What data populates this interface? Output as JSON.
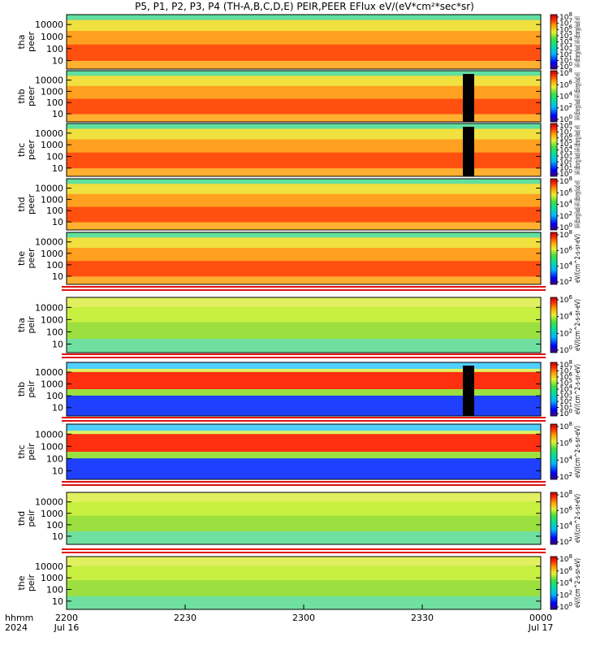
{
  "title": "P5, P1, P2, P3, P4 (TH-A,B,C,D,E) PEIR,PEER EFlux eV/(eV*cm²*sec*sr)",
  "chart_data": {
    "type": "heatmap",
    "x_axis": {
      "time_labels": [
        "2200",
        "2230",
        "2300",
        "2330",
        "0000"
      ],
      "date_labels": [
        "Jul 16",
        "",
        "",
        "",
        "Jul 17"
      ],
      "row_label_time": "hhmm",
      "row_label_year": "2024"
    },
    "y_ticks": [
      "10",
      "100",
      "1000",
      "10000"
    ],
    "y_scale": "log",
    "colorbar_label": "eV/(cm^2-s-sr-eV)",
    "panels": [
      {
        "name": "tha peer",
        "probe": "tha",
        "species": "peer",
        "colorbar_ticks": [
          "10^8",
          "10^7",
          "10^6",
          "10^5",
          "10^4",
          "10^3",
          "10^2",
          "10^1",
          "10^0"
        ],
        "colorbar_label": "(All-(dEnergy(lead) (All-(dEnergy(lead) eV)"
      },
      {
        "name": "thb peer",
        "probe": "thb",
        "species": "peer",
        "colorbar_ticks": [
          "10^8",
          "10^6",
          "10^4",
          "10^2",
          "10^0"
        ],
        "colorbar_label": "(All-(dEnergy(lead)-(All-(dEnergy(lead) eV)"
      },
      {
        "name": "thc peer",
        "probe": "thc",
        "species": "peer",
        "colorbar_ticks": [
          "10^8",
          "10^7",
          "10^6",
          "10^5",
          "10^4",
          "10^3",
          "10^2",
          "10^1",
          "10^0"
        ],
        "colorbar_label": "(All-(dEnergy(lead)-(All-(dEnergy(lead) eV)"
      },
      {
        "name": "thd peer",
        "probe": "thd",
        "species": "peer",
        "colorbar_ticks": [
          "10^8",
          "10^6",
          "10^4",
          "10^2",
          "10^0"
        ],
        "colorbar_label": "(All-(dEnergy(lead)-(All-(dEnergy(lead) eV)"
      },
      {
        "name": "the peer",
        "probe": "the",
        "species": "peer",
        "colorbar_ticks": [
          "10^8",
          "10^6",
          "10^4",
          "10^2"
        ],
        "colorbar_label": "eV/(cm^2-s-sr-eV)"
      },
      {
        "name": "tha peir",
        "probe": "tha",
        "species": "peir",
        "colorbar_ticks": [
          "10^6",
          "10^4",
          "10^2",
          "10^0"
        ],
        "colorbar_label": "eV/(cm^2-s-sr-eV)"
      },
      {
        "name": "thb peir",
        "probe": "thb",
        "species": "peir",
        "colorbar_ticks": [
          "10^8",
          "10^7",
          "10^6",
          "10^5",
          "10^4",
          "10^3",
          "10^2",
          "10^1",
          "10^0"
        ],
        "colorbar_label": "eV/(cm^2-s-sr-eV)"
      },
      {
        "name": "thc peir",
        "probe": "thc",
        "species": "peir",
        "colorbar_ticks": [
          "10^8",
          "10^6",
          "10^4",
          "10^2"
        ],
        "colorbar_label": "eV/(cm^2-s-sr-eV)"
      },
      {
        "name": "thd peir",
        "probe": "thd",
        "species": "peir",
        "colorbar_ticks": [
          "10^8",
          "10^6",
          "10^4",
          "10^2"
        ],
        "colorbar_label": "eV/(cm^2-s-sr-eV)"
      },
      {
        "name": "the peir",
        "probe": "the",
        "species": "peir",
        "colorbar_ticks": [
          "10^8",
          "10^6",
          "10^4",
          "10^2",
          "10^0"
        ],
        "colorbar_label": "eV/(cm^2-s-sr-eV)"
      }
    ]
  }
}
